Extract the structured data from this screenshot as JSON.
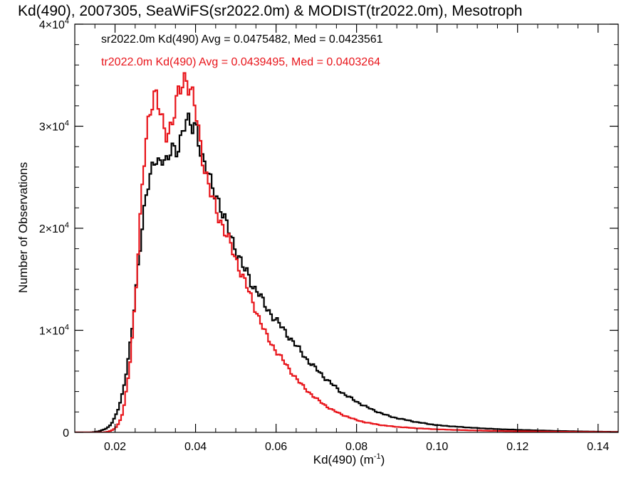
{
  "chart_data": {
    "type": "line",
    "title": "Kd(490), 2007305, SeaWiFS(sr2022.0m) & MODIST(tr2022.0m), Mesotroph",
    "xlabel": "Kd(490) (m",
    "xlabel_exp": "-1",
    "xlabel_close": ")",
    "ylabel": "Number of Observations",
    "xlim": [
      0.01,
      0.145
    ],
    "ylim": [
      0,
      40000
    ],
    "x_ticks": [
      {
        "value": 0.02,
        "label": "0.02"
      },
      {
        "value": 0.04,
        "label": "0.04"
      },
      {
        "value": 0.06,
        "label": "0.06"
      },
      {
        "value": 0.08,
        "label": "0.08"
      },
      {
        "value": 0.1,
        "label": "0.10"
      },
      {
        "value": 0.12,
        "label": "0.12"
      },
      {
        "value": 0.14,
        "label": "0.14"
      }
    ],
    "y_ticks": [
      {
        "value": 0,
        "mant": "0",
        "exp": ""
      },
      {
        "value": 10000,
        "mant": "1×10",
        "exp": "4"
      },
      {
        "value": 20000,
        "mant": "2×10",
        "exp": "4"
      },
      {
        "value": 30000,
        "mant": "3×10",
        "exp": "4"
      },
      {
        "value": 40000,
        "mant": "4×10",
        "exp": "4"
      }
    ],
    "legend": [
      {
        "text": "sr2022.0m Kd(490) Avg = 0.0475482, Med = 0.0423561",
        "color": "#000000"
      },
      {
        "text": "tr2022.0m Kd(490) Avg = 0.0439495, Med = 0.0403264",
        "color": "#e8141a"
      }
    ],
    "series": [
      {
        "color": "#000000",
        "points": [
          [
            0.01,
            0
          ],
          [
            0.014,
            0
          ],
          [
            0.016,
            100
          ],
          [
            0.018,
            400
          ],
          [
            0.019,
            800
          ],
          [
            0.02,
            1500
          ],
          [
            0.021,
            2500
          ],
          [
            0.022,
            4000
          ],
          [
            0.023,
            6500
          ],
          [
            0.024,
            9500
          ],
          [
            0.025,
            13000
          ],
          [
            0.026,
            17000
          ],
          [
            0.027,
            21000
          ],
          [
            0.028,
            24500
          ],
          [
            0.029,
            25500
          ],
          [
            0.03,
            26500
          ],
          [
            0.031,
            26000
          ],
          [
            0.032,
            27500
          ],
          [
            0.033,
            26500
          ],
          [
            0.034,
            28000
          ],
          [
            0.035,
            26800
          ],
          [
            0.036,
            28500
          ],
          [
            0.037,
            30000
          ],
          [
            0.0375,
            31200
          ],
          [
            0.038,
            30500
          ],
          [
            0.039,
            29500
          ],
          [
            0.04,
            30000
          ],
          [
            0.041,
            28500
          ],
          [
            0.042,
            26500
          ],
          [
            0.043,
            25500
          ],
          [
            0.044,
            24000
          ],
          [
            0.045,
            23500
          ],
          [
            0.046,
            22500
          ],
          [
            0.047,
            21000
          ],
          [
            0.048,
            20000
          ],
          [
            0.049,
            19000
          ],
          [
            0.05,
            18000
          ],
          [
            0.051,
            17000
          ],
          [
            0.052,
            16000
          ],
          [
            0.053,
            15500
          ],
          [
            0.054,
            14500
          ],
          [
            0.055,
            14000
          ],
          [
            0.056,
            13500
          ],
          [
            0.057,
            12500
          ],
          [
            0.058,
            12000
          ],
          [
            0.06,
            11000
          ],
          [
            0.062,
            10000
          ],
          [
            0.064,
            9000
          ],
          [
            0.066,
            8000
          ],
          [
            0.068,
            7000
          ],
          [
            0.07,
            6200
          ],
          [
            0.072,
            5400
          ],
          [
            0.074,
            4700
          ],
          [
            0.076,
            4000
          ],
          [
            0.078,
            3500
          ],
          [
            0.08,
            3000
          ],
          [
            0.082,
            2600
          ],
          [
            0.084,
            2200
          ],
          [
            0.086,
            1900
          ],
          [
            0.088,
            1600
          ],
          [
            0.09,
            1400
          ],
          [
            0.095,
            1000
          ],
          [
            0.1,
            700
          ],
          [
            0.105,
            550
          ],
          [
            0.11,
            420
          ],
          [
            0.115,
            320
          ],
          [
            0.12,
            250
          ],
          [
            0.125,
            190
          ],
          [
            0.13,
            140
          ],
          [
            0.135,
            100
          ],
          [
            0.14,
            70
          ],
          [
            0.145,
            50
          ]
        ]
      },
      {
        "color": "#e8141a",
        "points": [
          [
            0.01,
            0
          ],
          [
            0.017,
            0
          ],
          [
            0.018,
            50
          ],
          [
            0.019,
            150
          ],
          [
            0.02,
            400
          ],
          [
            0.021,
            900
          ],
          [
            0.022,
            2000
          ],
          [
            0.023,
            4500
          ],
          [
            0.024,
            8000
          ],
          [
            0.025,
            13000
          ],
          [
            0.026,
            19000
          ],
          [
            0.027,
            25500
          ],
          [
            0.028,
            30000
          ],
          [
            0.029,
            32500
          ],
          [
            0.03,
            33000
          ],
          [
            0.031,
            31500
          ],
          [
            0.032,
            30000
          ],
          [
            0.033,
            29500
          ],
          [
            0.034,
            30000
          ],
          [
            0.035,
            31500
          ],
          [
            0.036,
            33500
          ],
          [
            0.037,
            34800
          ],
          [
            0.0375,
            35000
          ],
          [
            0.038,
            34500
          ],
          [
            0.039,
            33000
          ],
          [
            0.04,
            31500
          ],
          [
            0.041,
            29000
          ],
          [
            0.042,
            26500
          ],
          [
            0.043,
            24500
          ],
          [
            0.044,
            23000
          ],
          [
            0.045,
            22000
          ],
          [
            0.046,
            21000
          ],
          [
            0.047,
            20000
          ],
          [
            0.048,
            19000
          ],
          [
            0.049,
            18000
          ],
          [
            0.05,
            17000
          ],
          [
            0.051,
            16000
          ],
          [
            0.052,
            15000
          ],
          [
            0.053,
            14000
          ],
          [
            0.054,
            13000
          ],
          [
            0.055,
            12000
          ],
          [
            0.056,
            11000
          ],
          [
            0.057,
            10000
          ],
          [
            0.058,
            9200
          ],
          [
            0.06,
            8000
          ],
          [
            0.062,
            6900
          ],
          [
            0.064,
            5800
          ],
          [
            0.066,
            4800
          ],
          [
            0.068,
            4000
          ],
          [
            0.07,
            3300
          ],
          [
            0.072,
            2700
          ],
          [
            0.074,
            2200
          ],
          [
            0.076,
            1800
          ],
          [
            0.078,
            1500
          ],
          [
            0.08,
            1200
          ],
          [
            0.082,
            1000
          ],
          [
            0.084,
            850
          ],
          [
            0.086,
            720
          ],
          [
            0.088,
            620
          ],
          [
            0.09,
            540
          ],
          [
            0.095,
            400
          ],
          [
            0.1,
            300
          ],
          [
            0.105,
            230
          ],
          [
            0.11,
            180
          ],
          [
            0.115,
            140
          ],
          [
            0.12,
            110
          ],
          [
            0.125,
            85
          ],
          [
            0.13,
            65
          ],
          [
            0.135,
            50
          ],
          [
            0.14,
            35
          ],
          [
            0.145,
            25
          ]
        ]
      }
    ]
  }
}
